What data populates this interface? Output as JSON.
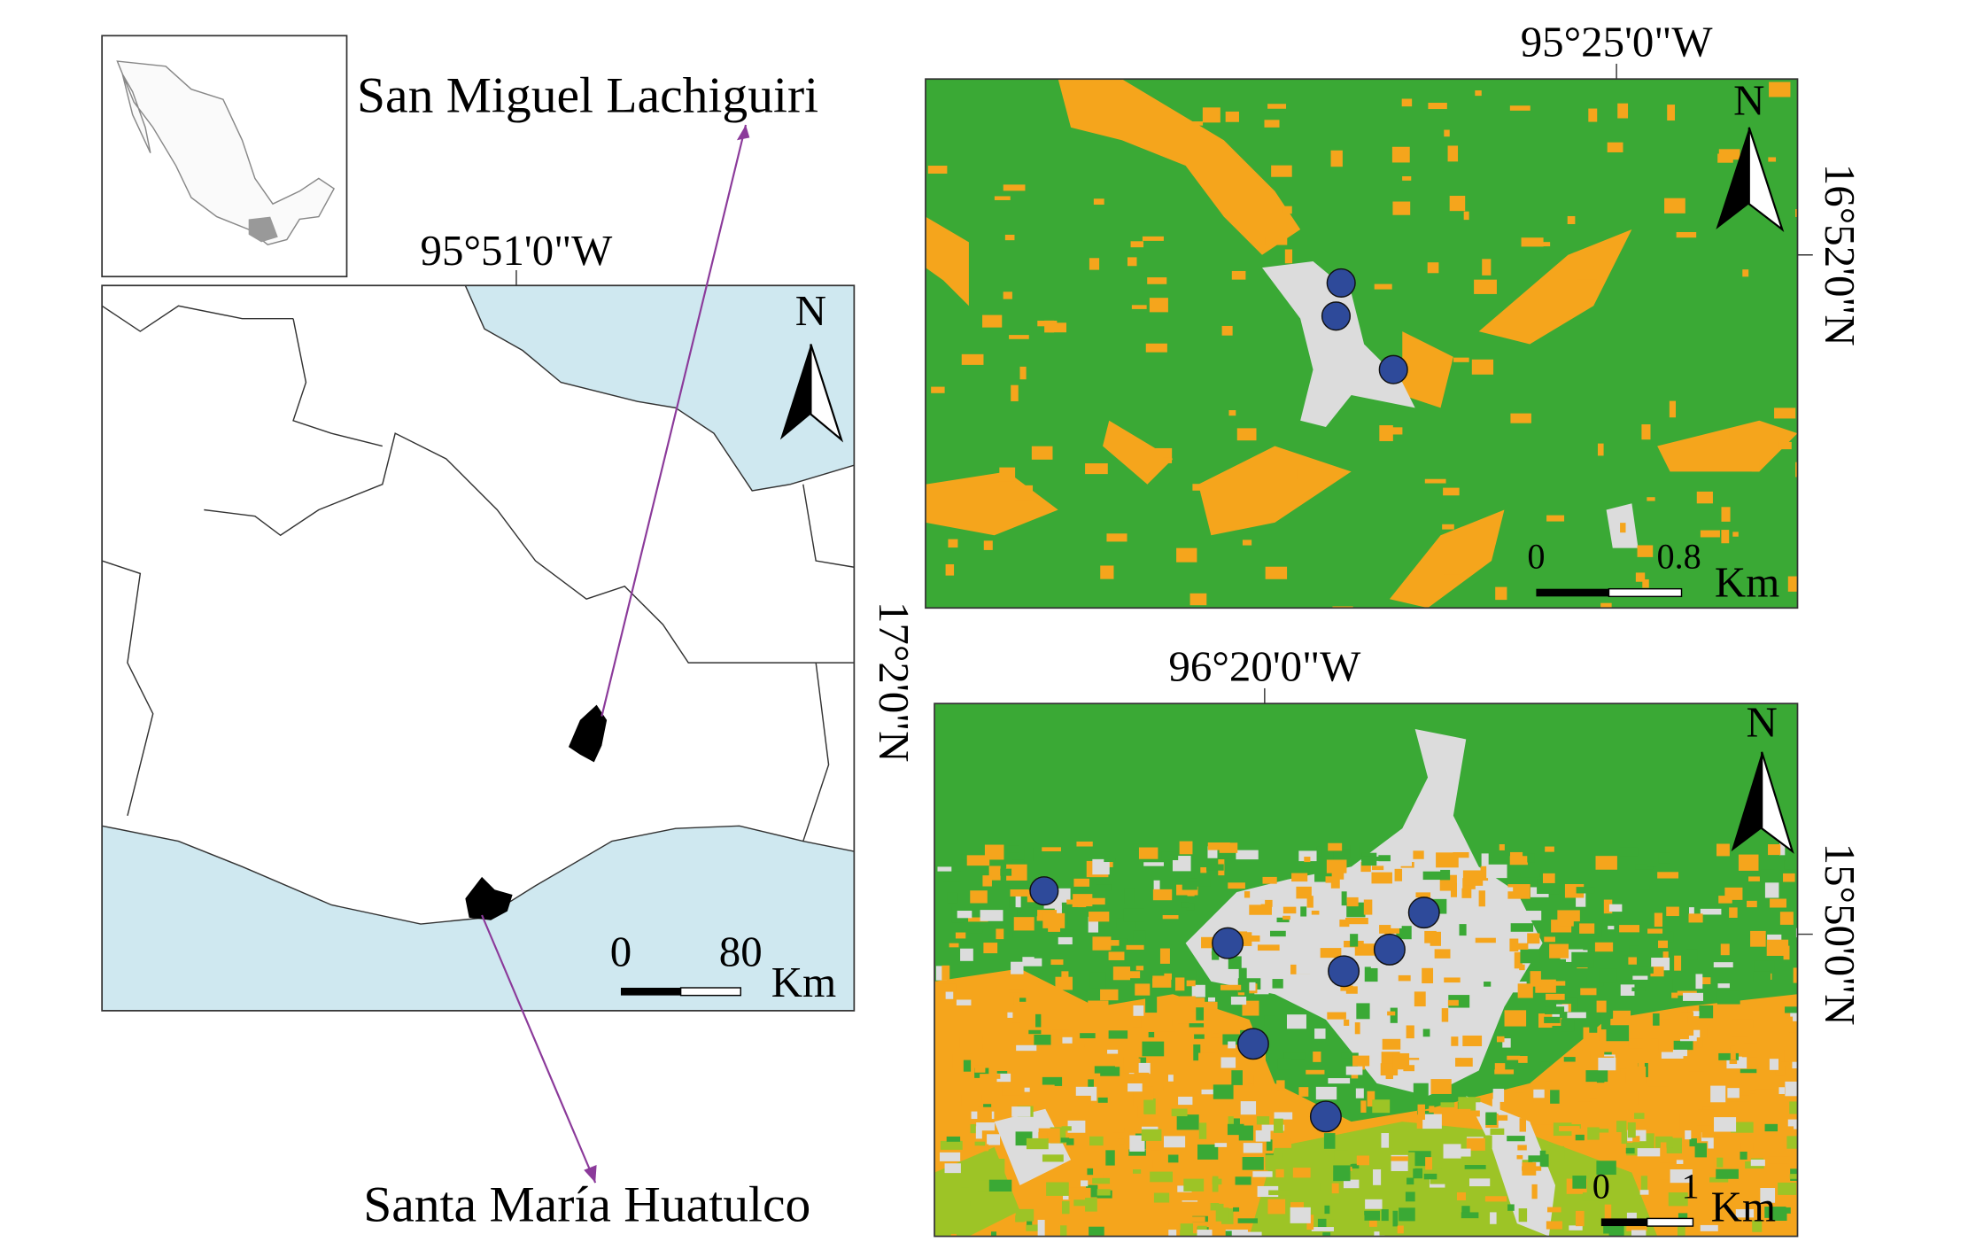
{
  "callouts": {
    "top": "San Miguel Lachiguiri",
    "bottom": "Santa María Huatulco"
  },
  "overview_map": {
    "longitude_label": "95°51'0\"W",
    "latitude_label": "17°2'0\"N",
    "north": "N",
    "scale": {
      "start": 0,
      "end": 80,
      "unit": "Km"
    }
  },
  "lachiguiri_map": {
    "longitude_label": "95°25'0\"W",
    "latitude_label": "16°52'0\"N",
    "north": "N",
    "scale": {
      "start": 0,
      "end": 0.8,
      "unit": "Km"
    }
  },
  "huatulco_map": {
    "longitude_label": "96°20'0\"W",
    "latitude_label": "15°50'0\"N",
    "north": "N",
    "scale": {
      "start": 0,
      "end": 1,
      "unit": "Km"
    }
  }
}
